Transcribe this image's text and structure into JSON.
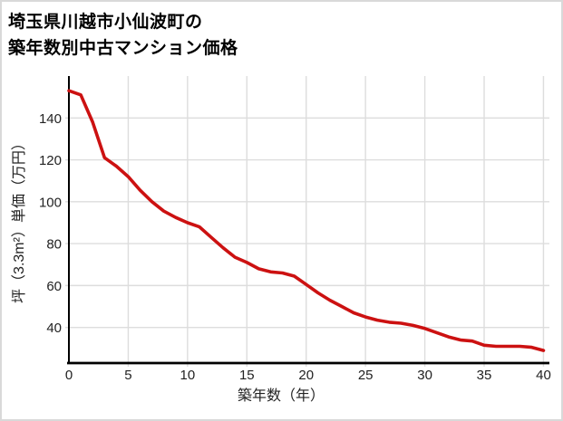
{
  "page": {
    "background_color": "#ffffff",
    "border_color": "#d9d9d9"
  },
  "title": {
    "line1": "埼玉県川越市小仙波町の",
    "line2": "築年数別中古マンション価格"
  },
  "chart_data": {
    "type": "line",
    "title": "埼玉県川越市小仙波町の築年数別中古マンション価格",
    "xlabel": "築年数（年）",
    "ylabel": "坪（3.3m²）単価（万円）",
    "x": [
      0,
      1,
      2,
      3,
      4,
      5,
      6,
      7,
      8,
      9,
      10,
      11,
      12,
      13,
      14,
      15,
      16,
      17,
      18,
      19,
      20,
      21,
      22,
      23,
      24,
      25,
      26,
      27,
      28,
      29,
      30,
      31,
      32,
      33,
      34,
      35,
      36,
      37,
      38,
      39,
      40
    ],
    "values": [
      153,
      151,
      138,
      121,
      117,
      112,
      105.5,
      100,
      95.5,
      92.5,
      90,
      88,
      83,
      78,
      73.5,
      71,
      68,
      66.5,
      66,
      64.5,
      60.5,
      56.5,
      53,
      50,
      47,
      45,
      43.5,
      42.5,
      42,
      41,
      39.5,
      37.5,
      35.5,
      34,
      33.5,
      31.5,
      31,
      31,
      31,
      30.5,
      29
    ],
    "x_ticks": [
      0,
      5,
      10,
      15,
      20,
      25,
      30,
      35,
      40
    ],
    "y_ticks": [
      40,
      60,
      80,
      100,
      120,
      140
    ],
    "xlim": [
      0,
      40.5
    ],
    "ylim": [
      23,
      160
    ],
    "grid": true,
    "legend": "none",
    "line_color": "#cc1111",
    "grid_color": "#dddddd",
    "axis_color": "#000000",
    "tick_label_color": "#222222"
  }
}
